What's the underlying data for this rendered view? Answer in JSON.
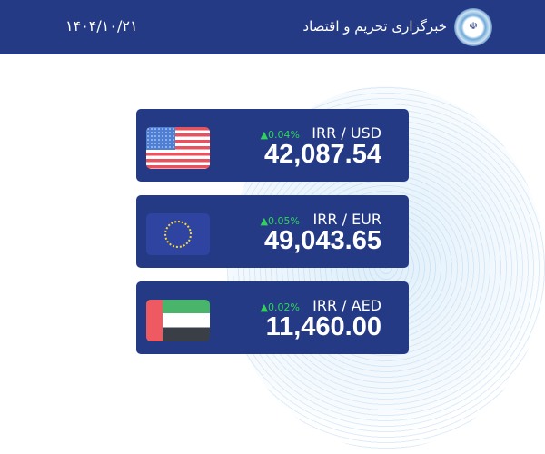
{
  "header": {
    "site_name": "خبرگزاری تحریم و اقتصاد",
    "date": "۱۴۰۴/۱۰/۲۱",
    "logo_icon": "emblem-icon",
    "color": "#243a84"
  },
  "rates": [
    {
      "pair": "IRR / USD",
      "change": "▲0.04%",
      "value": "42,087.54",
      "flag": "us-flag-icon"
    },
    {
      "pair": "IRR / EUR",
      "change": "▲0.05%",
      "value": "49,043.65",
      "flag": "eu-flag-icon"
    },
    {
      "pair": "IRR / AED",
      "change": "▲0.02%",
      "value": "11,460.00",
      "flag": "uae-flag-icon"
    }
  ],
  "colors": {
    "up": "#2fd35a",
    "card": "#243a84"
  }
}
